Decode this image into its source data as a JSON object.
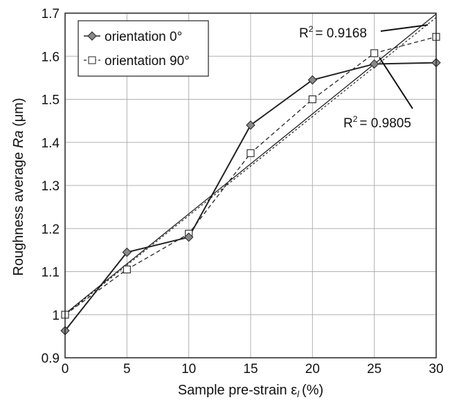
{
  "chart_data": {
    "type": "line",
    "xlabel": "Sample pre-strain ε",
    "xlabel_sub": "l",
    "xlabel_unit": "(%)",
    "ylabel_prefix": "Roughness average ",
    "ylabel_italic": "Ra",
    "ylabel_suffix": " (μm)",
    "x": [
      0,
      5,
      10,
      15,
      20,
      25,
      30
    ],
    "xlim": [
      0,
      30
    ],
    "ylim": [
      0.9,
      1.7
    ],
    "x_ticks": [
      "0",
      "5",
      "10",
      "15",
      "20",
      "25",
      "30"
    ],
    "y_ticks": [
      "0.9",
      "1",
      "1.1",
      "1.2",
      "1.3",
      "1.4",
      "1.5",
      "1.6",
      "1.7"
    ],
    "grid": true,
    "legend_position": "top-left",
    "series": [
      {
        "name": "orientation 0°",
        "marker": "diamond",
        "values": [
          0.963,
          1.145,
          1.18,
          1.44,
          1.545,
          1.582,
          1.585
        ],
        "trendline": {
          "intercept": 1.002,
          "slope": 0.0232,
          "r2_label": "R",
          "r2_value": "= 0.9168"
        }
      },
      {
        "name": "orientation 90°",
        "marker": "square",
        "values": [
          1.0,
          1.105,
          1.188,
          1.375,
          1.5,
          1.607,
          1.645
        ],
        "trendline": {
          "intercept": 1.0,
          "slope": 0.023,
          "r2_label": "R",
          "r2_value": "= 0.9805"
        }
      }
    ],
    "annotations": [
      {
        "text": "R",
        "sup": "2",
        "rest": "= 0.9168"
      },
      {
        "text": "R",
        "sup": "2",
        "rest": "= 0.9805"
      }
    ]
  }
}
